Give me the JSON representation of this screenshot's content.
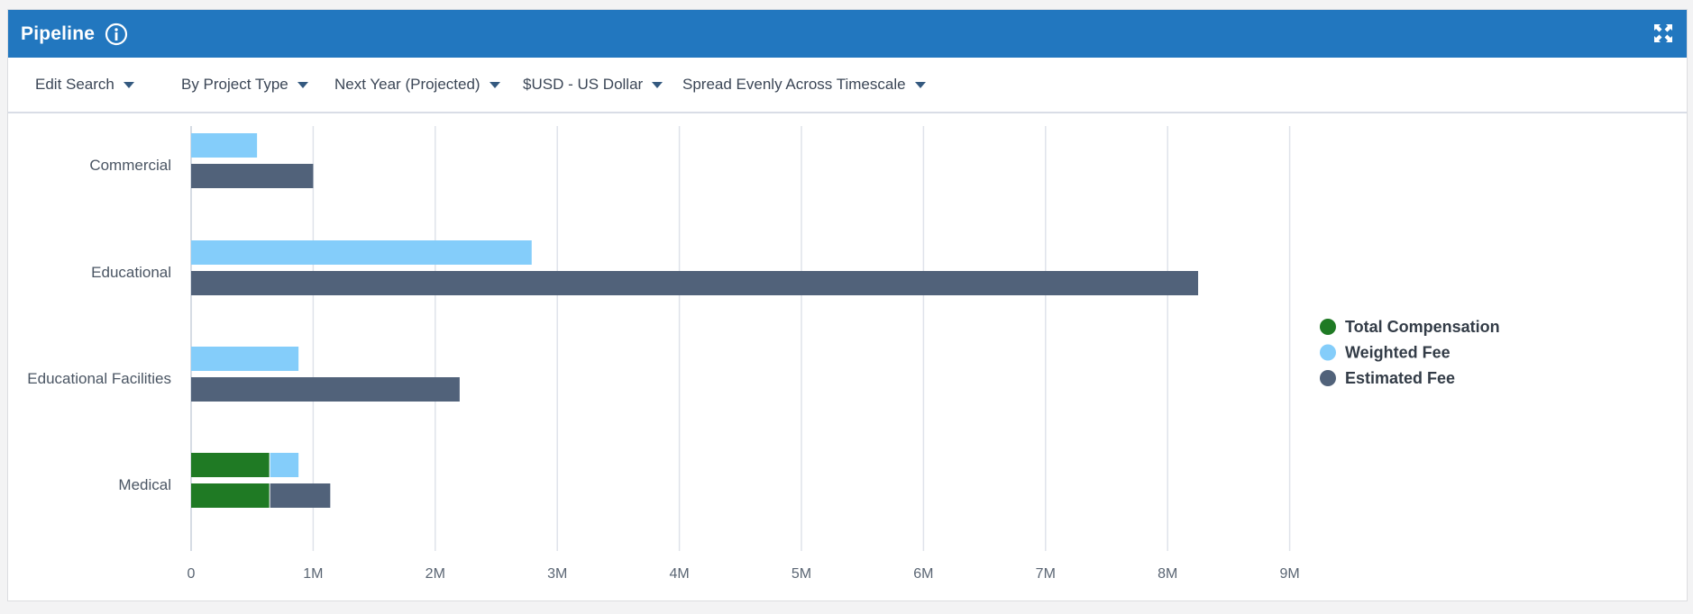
{
  "widget": {
    "title": "Pipeline",
    "icons": {
      "info": "info-icon",
      "expand": "expand-icon"
    }
  },
  "toolbar": {
    "edit_search": "Edit Search",
    "group_by": "By Project Type",
    "period": "Next Year (Projected)",
    "currency": "$USD - US Dollar",
    "spread": "Spread Evenly Across Timescale"
  },
  "colors": {
    "header": "#2277bf",
    "total_compensation": "#1f7a24",
    "weighted_fee": "#84cdfa",
    "estimated_fee": "#51627a",
    "gridline": "#dfe3ea"
  },
  "chart_data": {
    "type": "bar",
    "orientation": "horizontal",
    "stacked": true,
    "categories": [
      "Commercial",
      "Educational",
      "Educational Facilities",
      "Medical"
    ],
    "x_tick_labels": [
      "0",
      "1M",
      "2M",
      "3M",
      "4M",
      "5M",
      "6M",
      "7M",
      "8M",
      "9M"
    ],
    "xlim": [
      0,
      9000000
    ],
    "grid": true,
    "legend_position": "right",
    "series": [
      {
        "name": "Total Compensation",
        "color": "#1f7a24",
        "stack": "both",
        "values": [
          0,
          0,
          0,
          640000
        ]
      },
      {
        "name": "Weighted Fee",
        "color": "#84cdfa",
        "stack": "top",
        "values": [
          540000,
          2790000,
          880000,
          240000
        ]
      },
      {
        "name": "Estimated Fee",
        "color": "#51627a",
        "stack": "bottom",
        "values": [
          1000000,
          8250000,
          2200000,
          500000
        ]
      }
    ]
  }
}
